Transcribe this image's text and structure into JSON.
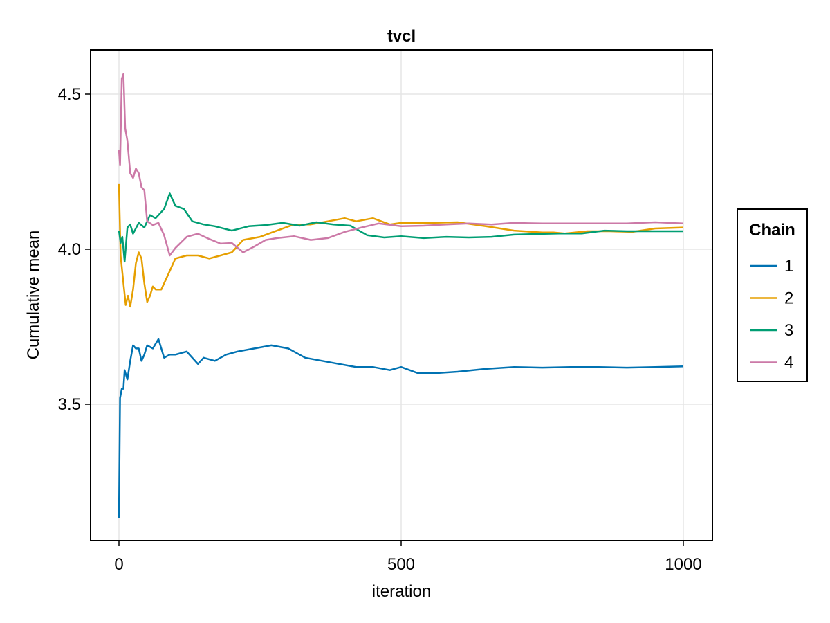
{
  "chart_data": {
    "type": "line",
    "title": "tvcl",
    "xlabel": "iteration",
    "ylabel": "Cumulative mean",
    "xlim": [
      -50,
      1050
    ],
    "ylim": [
      3.06,
      4.645
    ],
    "xticks": [
      0,
      500,
      1000
    ],
    "xtick_labels": [
      "0",
      "500",
      "1000"
    ],
    "yticks": [
      3.5,
      4.0,
      4.5
    ],
    "ytick_labels": [
      "3.5",
      "4.0",
      "4.5"
    ],
    "grid": true,
    "legend": {
      "title": "Chain",
      "position": "right"
    },
    "series": [
      {
        "name": "1",
        "color": "#0072b2",
        "x": [
          0,
          2,
          5,
          8,
          10,
          15,
          20,
          25,
          30,
          35,
          40,
          45,
          50,
          60,
          70,
          80,
          90,
          100,
          120,
          140,
          150,
          170,
          190,
          210,
          240,
          270,
          300,
          330,
          360,
          390,
          420,
          450,
          480,
          500,
          530,
          560,
          600,
          650,
          700,
          750,
          800,
          850,
          900,
          950,
          1000
        ],
        "y": [
          3.134,
          3.52,
          3.55,
          3.55,
          3.61,
          3.58,
          3.64,
          3.69,
          3.68,
          3.68,
          3.64,
          3.66,
          3.69,
          3.68,
          3.71,
          3.65,
          3.66,
          3.66,
          3.67,
          3.63,
          3.65,
          3.64,
          3.66,
          3.67,
          3.68,
          3.69,
          3.68,
          3.65,
          3.64,
          3.63,
          3.62,
          3.62,
          3.61,
          3.62,
          3.6,
          3.6,
          3.605,
          3.614,
          3.62,
          3.618,
          3.62,
          3.62,
          3.618,
          3.62,
          3.622
        ]
      },
      {
        "name": "2",
        "color": "#e69f00",
        "x": [
          0,
          3,
          8,
          12,
          16,
          20,
          25,
          30,
          35,
          40,
          45,
          50,
          55,
          60,
          65,
          75,
          85,
          100,
          120,
          140,
          160,
          180,
          200,
          220,
          250,
          280,
          310,
          340,
          370,
          400,
          420,
          450,
          480,
          500,
          550,
          600,
          650,
          700,
          750,
          770,
          790,
          830,
          870,
          910,
          950,
          1000
        ],
        "y": [
          4.21,
          3.98,
          3.89,
          3.82,
          3.85,
          3.815,
          3.87,
          3.955,
          3.99,
          3.97,
          3.89,
          3.83,
          3.85,
          3.88,
          3.87,
          3.87,
          3.91,
          3.97,
          3.98,
          3.98,
          3.97,
          3.98,
          3.99,
          4.03,
          4.04,
          4.06,
          4.08,
          4.08,
          4.09,
          4.1,
          4.09,
          4.1,
          4.08,
          4.085,
          4.085,
          4.087,
          4.074,
          4.06,
          4.054,
          4.054,
          4.051,
          4.058,
          4.058,
          4.056,
          4.067,
          4.07
        ]
      },
      {
        "name": "3",
        "color": "#009e73",
        "x": [
          0,
          3,
          6,
          10,
          15,
          20,
          25,
          35,
          45,
          55,
          65,
          80,
          90,
          100,
          115,
          130,
          150,
          170,
          200,
          230,
          260,
          290,
          320,
          350,
          380,
          410,
          440,
          470,
          500,
          540,
          580,
          620,
          660,
          700,
          740,
          780,
          820,
          860,
          900,
          950,
          1000
        ],
        "y": [
          4.06,
          4.02,
          4.04,
          3.96,
          4.07,
          4.08,
          4.05,
          4.085,
          4.07,
          4.11,
          4.1,
          4.13,
          4.18,
          4.14,
          4.13,
          4.09,
          4.08,
          4.074,
          4.06,
          4.074,
          4.078,
          4.085,
          4.076,
          4.087,
          4.08,
          4.076,
          4.045,
          4.038,
          4.042,
          4.036,
          4.04,
          4.038,
          4.04,
          4.047,
          4.049,
          4.051,
          4.051,
          4.06,
          4.058,
          4.058,
          4.058
        ]
      },
      {
        "name": "4",
        "color": "#cc79a7",
        "x": [
          0,
          2,
          5,
          8,
          11,
          15,
          20,
          25,
          30,
          35,
          40,
          45,
          50,
          60,
          70,
          80,
          90,
          100,
          120,
          140,
          160,
          180,
          200,
          220,
          240,
          260,
          280,
          310,
          340,
          370,
          400,
          430,
          460,
          500,
          540,
          580,
          620,
          660,
          700,
          750,
          800,
          850,
          900,
          950,
          1000
        ],
        "y": [
          4.32,
          4.27,
          4.55,
          4.565,
          4.39,
          4.35,
          4.245,
          4.23,
          4.26,
          4.245,
          4.2,
          4.19,
          4.09,
          4.078,
          4.085,
          4.045,
          3.98,
          4.004,
          4.04,
          4.05,
          4.033,
          4.018,
          4.02,
          3.99,
          4.009,
          4.03,
          4.036,
          4.042,
          4.03,
          4.036,
          4.056,
          4.07,
          4.083,
          4.074,
          4.076,
          4.08,
          4.083,
          4.08,
          4.085,
          4.083,
          4.083,
          4.083,
          4.083,
          4.087,
          4.083
        ]
      }
    ]
  }
}
